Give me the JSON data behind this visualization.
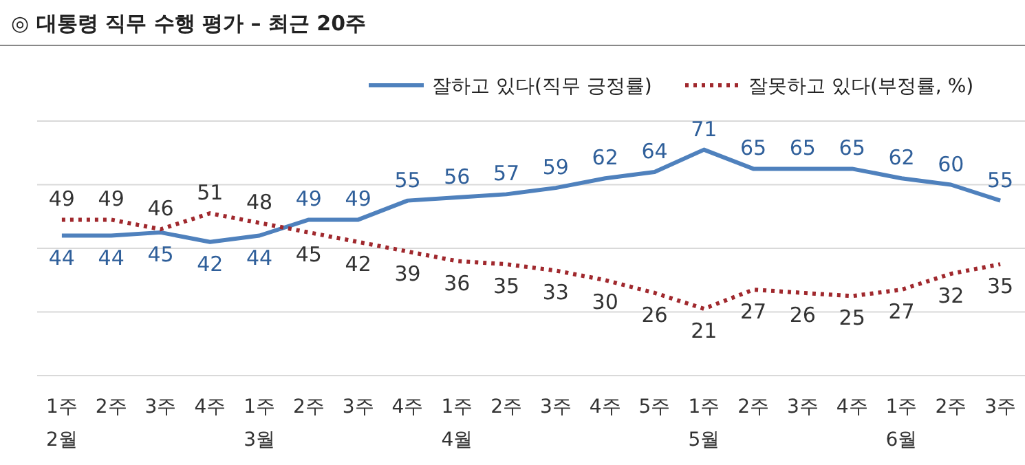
{
  "chart_data": {
    "type": "line",
    "title": "◎ 대통령 직무 수행 평가 – 최근 20주",
    "categories": [
      "1주\n2월",
      "2주",
      "3주",
      "4주",
      "1주\n3월",
      "2주",
      "3주",
      "4주",
      "1주\n4월",
      "2주",
      "3주",
      "4주",
      "5주",
      "1주\n5월",
      "2주",
      "3주",
      "4주",
      "1주\n6월",
      "2주",
      "3주"
    ],
    "series": [
      {
        "name": "잘하고 있다(직무 긍정률)",
        "color": "#4f81bd",
        "line_style": "solid",
        "values": [
          44,
          44,
          45,
          42,
          44,
          49,
          49,
          55,
          56,
          57,
          59,
          62,
          64,
          71,
          65,
          65,
          65,
          62,
          60,
          55
        ]
      },
      {
        "name": "잘못하고 있다(부정률, %)",
        "color": "#a0282d",
        "line_style": "dotted",
        "values": [
          49,
          49,
          46,
          51,
          48,
          45,
          42,
          39,
          36,
          35,
          33,
          30,
          26,
          21,
          27,
          26,
          25,
          27,
          32,
          35
        ]
      }
    ],
    "ylim": [
      0,
      80
    ],
    "yticks": [
      {
        "value": 0,
        "label": null
      },
      {
        "value": 20,
        "label": null
      },
      {
        "value": 40,
        "label": null
      },
      {
        "value": 60,
        "label": null
      },
      {
        "value": 80,
        "label": null
      }
    ],
    "grid": "y",
    "tick_labels": "x",
    "legend": "top right",
    "data_labels": true
  }
}
